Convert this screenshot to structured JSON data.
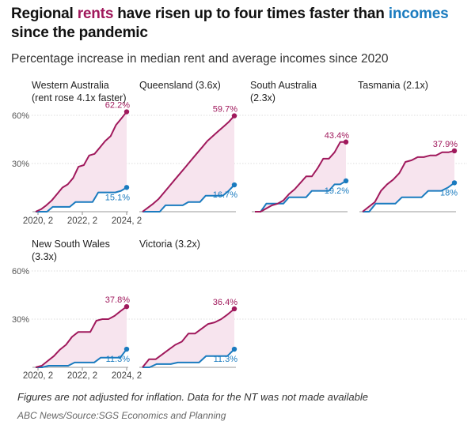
{
  "title": {
    "p1": "Regional ",
    "p2": "rents",
    "p3": " have risen up to four times faster than ",
    "p4": "incomes",
    "p5": " since the pandemic"
  },
  "subtitle": "Percentage increase in median rent and average incomes since 2020",
  "footnote": "Figures are not adjusted for inflation. Data for the NT was not made available",
  "source": "ABC News/Source:SGS Economics and Planning",
  "colors": {
    "rent": "#a0195c",
    "income": "#1a7bbf",
    "fill": "#f7e4ee",
    "grid": "#dddddd"
  },
  "chart_data": {
    "type": "line",
    "y_ticks": [
      "60%",
      "30%"
    ],
    "x_ticks": [
      "2020, 2",
      "2022, 2",
      "2024, 2"
    ],
    "ylim": [
      0,
      60
    ],
    "x_range": [
      "2020 Q2",
      "2024 Q2"
    ],
    "panels": [
      {
        "title_lines": [
          "Western Australia",
          "(rent rose 4.1x faster)"
        ],
        "rent_label": "62.2%",
        "income_label": "15.1%",
        "rent": [
          0,
          1.5,
          4,
          7,
          11,
          15,
          17,
          21,
          28,
          29,
          35,
          36,
          40,
          44,
          47,
          54,
          58,
          62.2
        ],
        "income": [
          0,
          0,
          0,
          3,
          3,
          3,
          3,
          6,
          6,
          6,
          6,
          12,
          12,
          12,
          12,
          13,
          15.1
        ]
      },
      {
        "title_lines": [
          "Queensland (3.6x)"
        ],
        "rent_label": "59.7%",
        "income_label": "16.7%",
        "rent": [
          0,
          2.5,
          5,
          8,
          12,
          16,
          20,
          24,
          28,
          32,
          36,
          40,
          44,
          47,
          50,
          53,
          56,
          59.7
        ],
        "income": [
          0,
          0,
          0,
          0,
          4,
          4,
          4,
          4,
          6,
          6,
          6,
          10,
          10,
          10,
          10,
          13,
          16.7
        ]
      },
      {
        "title_lines": [
          "South Australia",
          "(2.3x)"
        ],
        "rent_label": "43.4%",
        "income_label": "19.2%",
        "rent": [
          0,
          0,
          2,
          4,
          5,
          7,
          11,
          14,
          18,
          22,
          22,
          27,
          33,
          33,
          37,
          43.4,
          43.4
        ],
        "income": [
          0,
          0,
          5,
          5,
          5,
          5,
          9,
          9,
          9,
          9,
          13,
          13,
          13,
          13,
          17,
          17,
          19.2
        ]
      },
      {
        "title_lines": [
          "Tasmania (2.1x)"
        ],
        "rent_label": "37.9%",
        "income_label": "18%",
        "rent": [
          0,
          3,
          6,
          13,
          17,
          20,
          24,
          31,
          32,
          34,
          34,
          35,
          35,
          37,
          37,
          37.9
        ],
        "income": [
          0,
          0,
          5,
          5,
          5,
          5,
          9,
          9,
          9,
          9,
          13,
          13,
          13,
          15,
          18
        ]
      },
      {
        "title_lines": [
          "New South Wales",
          "(3.3x)"
        ],
        "rent_label": "37.8%",
        "income_label": "11.3%",
        "rent": [
          0,
          1,
          4,
          7,
          11,
          14,
          19,
          22,
          22,
          22,
          29,
          30,
          30,
          32,
          35,
          37.8
        ],
        "income": [
          0,
          0,
          1,
          1,
          1,
          1,
          3,
          3,
          3,
          3,
          6,
          6,
          6,
          6,
          11.3
        ]
      },
      {
        "title_lines": [
          "Victoria (3.2x)"
        ],
        "rent_label": "36.4%",
        "income_label": "11.3%",
        "rent": [
          0,
          5,
          5,
          8,
          11,
          14,
          16,
          21,
          21,
          24,
          27,
          28,
          30,
          33,
          36.4
        ],
        "income": [
          0,
          0,
          2,
          2,
          2,
          3,
          3,
          3,
          3,
          7,
          7,
          7,
          7,
          11.3
        ]
      }
    ]
  }
}
